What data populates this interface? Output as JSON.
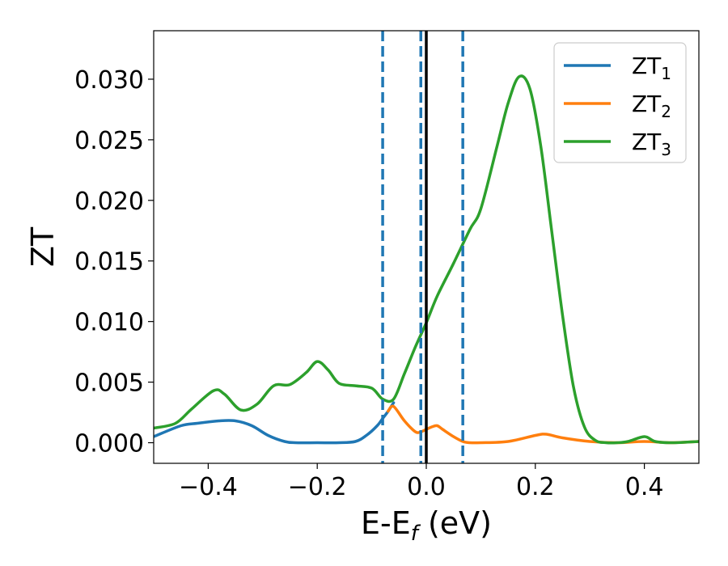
{
  "chart_data": {
    "type": "line",
    "xlabel": "E-E",
    "xlabel_sub": "f",
    "xlabel_suffix": " (eV)",
    "ylabel": "ZT",
    "xlim": [
      -0.5,
      0.5
    ],
    "ylim": [
      -0.0017,
      0.034
    ],
    "xticks": [
      -0.4,
      -0.2,
      0.0,
      0.2,
      0.4
    ],
    "xtick_labels": [
      "−0.4",
      "−0.2",
      "0.0",
      "0.2",
      "0.4"
    ],
    "yticks": [
      0.0,
      0.005,
      0.01,
      0.015,
      0.02,
      0.025,
      0.03
    ],
    "ytick_labels": [
      "0.000",
      "0.005",
      "0.010",
      "0.015",
      "0.020",
      "0.025",
      "0.030"
    ],
    "grid": false,
    "legend_position": "upper right",
    "vlines": [
      {
        "x": -0.08,
        "style": "dashed",
        "color": "#1f77b4"
      },
      {
        "x": -0.01,
        "style": "dashed",
        "color": "#1f77b4"
      },
      {
        "x": 0.0,
        "style": "solid",
        "color": "#000000"
      },
      {
        "x": 0.067,
        "style": "dashed",
        "color": "#1f77b4"
      }
    ],
    "series": [
      {
        "name": "ZT",
        "sub": "1",
        "color": "#1f77b4",
        "x": [
          -0.5,
          -0.45,
          -0.42,
          -0.38,
          -0.35,
          -0.32,
          -0.29,
          -0.26,
          -0.24,
          -0.2,
          -0.16,
          -0.13,
          -0.11,
          -0.09,
          -0.08,
          -0.07,
          -0.06
        ],
        "y": [
          0.0005,
          0.0014,
          0.0016,
          0.0018,
          0.0018,
          0.0014,
          0.0006,
          0.0001,
          0.0,
          0.0,
          0.0,
          0.0001,
          0.0006,
          0.0014,
          0.002,
          0.0026,
          0.0033
        ]
      },
      {
        "name": "ZT",
        "sub": "2",
        "color": "#ff7f0e",
        "x": [
          -0.07,
          -0.06,
          -0.04,
          -0.02,
          -0.01,
          0.0,
          0.01,
          0.02,
          0.03,
          0.05,
          0.067,
          0.08,
          0.1,
          0.15,
          0.2,
          0.22,
          0.25,
          0.3,
          0.35,
          0.4,
          0.45,
          0.5
        ],
        "y": [
          0.0026,
          0.003,
          0.0018,
          0.0009,
          0.0009,
          0.0011,
          0.0013,
          0.0014,
          0.0011,
          0.0005,
          0.0001,
          0.0,
          0.0,
          0.0001,
          0.0006,
          0.0007,
          0.0004,
          0.0001,
          0.0,
          0.0001,
          0.0,
          0.0001
        ]
      },
      {
        "name": "ZT",
        "sub": "3",
        "color": "#2ca02c",
        "x": [
          -0.5,
          -0.46,
          -0.43,
          -0.39,
          -0.37,
          -0.34,
          -0.31,
          -0.28,
          -0.25,
          -0.22,
          -0.2,
          -0.18,
          -0.16,
          -0.13,
          -0.1,
          -0.08,
          -0.06,
          -0.04,
          -0.02,
          0.0,
          0.02,
          0.05,
          0.08,
          0.1,
          0.13,
          0.15,
          0.17,
          0.19,
          0.21,
          0.23,
          0.25,
          0.27,
          0.29,
          0.31,
          0.33,
          0.35,
          0.37,
          0.4,
          0.42,
          0.45,
          0.5
        ],
        "y": [
          0.0012,
          0.0016,
          0.0028,
          0.0043,
          0.004,
          0.0027,
          0.0032,
          0.0047,
          0.0048,
          0.0058,
          0.0067,
          0.006,
          0.0049,
          0.0047,
          0.0045,
          0.0036,
          0.0036,
          0.0057,
          0.0079,
          0.0099,
          0.0121,
          0.0148,
          0.0176,
          0.0193,
          0.0245,
          0.028,
          0.0302,
          0.0292,
          0.0245,
          0.0175,
          0.0105,
          0.0046,
          0.0013,
          0.0002,
          0.0,
          0.0,
          0.0001,
          0.0005,
          0.0001,
          0.0,
          0.0001
        ]
      }
    ]
  }
}
